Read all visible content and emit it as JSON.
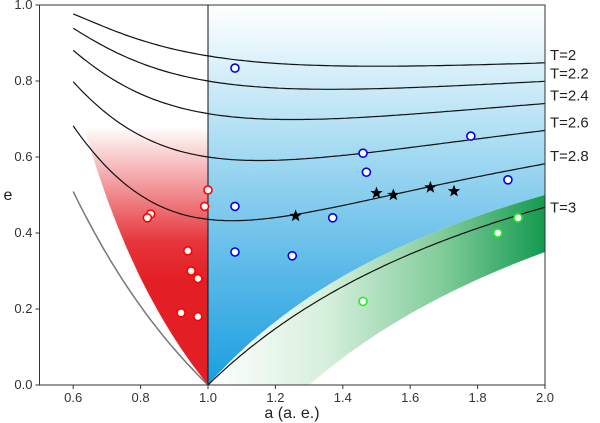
{
  "chart_data": {
    "type": "scatter",
    "title": "",
    "xlabel": "a (a. e.)",
    "ylabel": "e",
    "xlim": [
      0.5,
      2.0
    ],
    "ylim": [
      0.0,
      1.0
    ],
    "xticks": [
      "0.6",
      "0.8",
      "1.0",
      "1.2",
      "1.4",
      "1.6",
      "1.8",
      "2.0"
    ],
    "yticks": [
      "0.0",
      "0.2",
      "0.4",
      "0.6",
      "0.8",
      "1.0"
    ],
    "grid": false,
    "tisserand_curves": [
      {
        "T": 2,
        "label": "T=2"
      },
      {
        "T": 2.2,
        "label": "T=2.2"
      },
      {
        "T": 2.4,
        "label": "T=2.4"
      },
      {
        "T": 2.6,
        "label": "T=2.6"
      },
      {
        "T": 2.8,
        "label": "T=2.8"
      },
      {
        "T": 3,
        "label": "T=3"
      }
    ],
    "regions": {
      "aten_color": "#e31e24",
      "apollo_color": "#1a9ee0",
      "amor_color": "#139a4f"
    },
    "series": [
      {
        "name": "red",
        "stroke": "#ff0000",
        "marker": "circle",
        "points": [
          [
            0.83,
            0.45
          ],
          [
            0.82,
            0.44
          ],
          [
            1.0,
            0.513
          ],
          [
            0.99,
            0.47
          ],
          [
            0.94,
            0.353
          ],
          [
            0.95,
            0.3
          ],
          [
            0.97,
            0.28
          ],
          [
            0.92,
            0.19
          ],
          [
            0.97,
            0.18
          ]
        ]
      },
      {
        "name": "blue",
        "stroke": "#0000ee",
        "marker": "circle",
        "points": [
          [
            1.08,
            0.834
          ],
          [
            1.08,
            0.47
          ],
          [
            1.08,
            0.35
          ],
          [
            1.25,
            0.34
          ],
          [
            1.37,
            0.44
          ],
          [
            1.46,
            0.61
          ],
          [
            1.47,
            0.56
          ],
          [
            1.78,
            0.655
          ],
          [
            1.89,
            0.54
          ]
        ]
      },
      {
        "name": "stars",
        "stroke": "#000000",
        "marker": "star",
        "points": [
          [
            1.26,
            0.445
          ],
          [
            1.5,
            0.505
          ],
          [
            1.55,
            0.5
          ],
          [
            1.66,
            0.52
          ],
          [
            1.73,
            0.51
          ]
        ]
      },
      {
        "name": "green",
        "stroke": "#22ee22",
        "marker": "circle",
        "points": [
          [
            1.86,
            0.4
          ],
          [
            1.92,
            0.44
          ],
          [
            1.46,
            0.22
          ]
        ]
      }
    ]
  }
}
